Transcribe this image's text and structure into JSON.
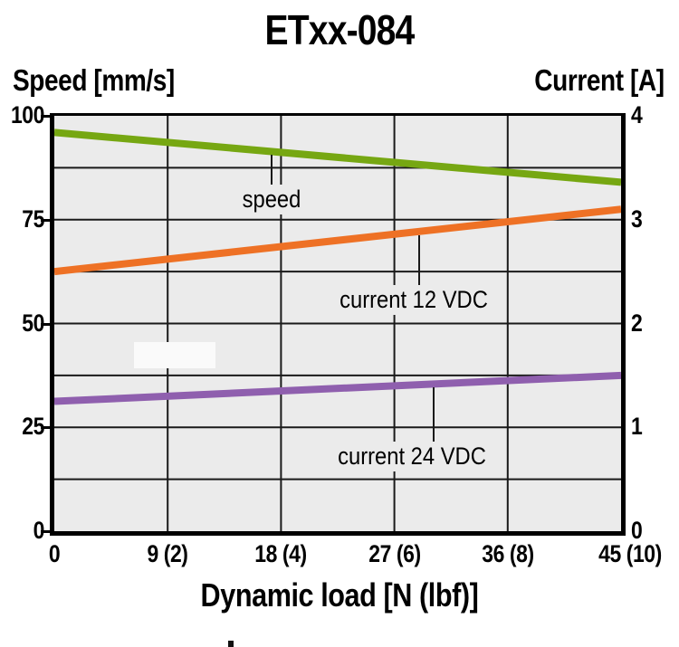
{
  "title": "ETxx-084",
  "axes": {
    "left": {
      "caption": "Speed [mm/s]",
      "ticks": [
        "100",
        "75",
        "50",
        "25",
        "0"
      ]
    },
    "right": {
      "caption": "Current [A]",
      "ticks": [
        "4",
        "3",
        "2",
        "1",
        "0"
      ]
    },
    "x": {
      "caption": "Dynamic load [N (lbf)]",
      "ticks": [
        "0",
        "9 (2)",
        "18 (4)",
        "27 (6)",
        "36 (8)",
        "45 (10)"
      ]
    }
  },
  "annotations": [
    {
      "id": "speed",
      "label": "speed"
    },
    {
      "id": "current12",
      "label": "current 12 VDC"
    },
    {
      "id": "current24",
      "label": "current 24 VDC"
    }
  ],
  "colors": {
    "speed_line": "#76a712",
    "current_12_vdc_line": "#ee7125",
    "current_24_vdc_line": "#8f5fae",
    "plot_background": "#ebebeb",
    "gridline": "#1a1a1a",
    "axis_frame": "#000000"
  },
  "chart_data": {
    "type": "line",
    "title": "ETxx-084",
    "xlabel": "Dynamic load [N (lbf)]",
    "ylabel_left": "Speed [mm/s]",
    "ylabel_right": "Current [A]",
    "xlim": [
      0,
      45
    ],
    "ylim_left": [
      0,
      100
    ],
    "ylim_right": [
      0,
      4
    ],
    "grid": true,
    "x_ticks_N": [
      0,
      9,
      18,
      27,
      36,
      45
    ],
    "x_ticks_lbf": [
      0,
      2,
      4,
      6,
      8,
      10
    ],
    "y_ticks_left": [
      0,
      25,
      50,
      75,
      100
    ],
    "y_ticks_right": [
      0,
      1,
      2,
      3,
      4
    ],
    "minor_grid_step_right_axis_A": 0.5,
    "series": [
      {
        "name": "speed",
        "axis": "left",
        "units": "mm/s",
        "x": [
          0,
          45
        ],
        "values": [
          96,
          84
        ],
        "color": "#76a712"
      },
      {
        "name": "current 12 VDC",
        "axis": "right",
        "units": "A",
        "x": [
          0,
          45
        ],
        "values": [
          2.5,
          3.1
        ],
        "color": "#ee7125"
      },
      {
        "name": "current 24 VDC",
        "axis": "right",
        "units": "A",
        "x": [
          0,
          45
        ],
        "values": [
          1.25,
          1.5
        ],
        "color": "#8f5fae"
      }
    ]
  }
}
